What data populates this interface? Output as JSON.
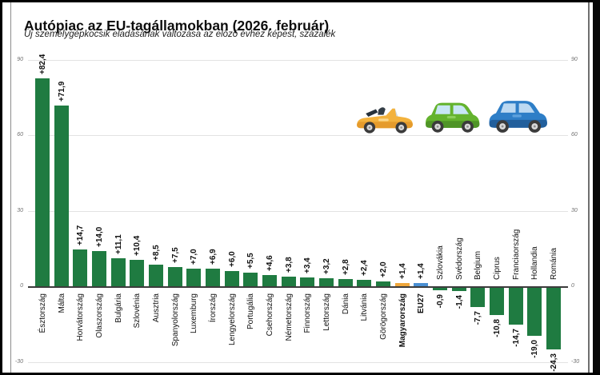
{
  "header": {
    "title": "Autópiac az EU-tagállamokban (2026. február)",
    "subtitle": "Új személygépkocsik eladásának változása az előző évhez képest, százalék"
  },
  "chart_data": {
    "type": "bar",
    "title": "Autópiac az EU-tagállamokban (2026. február)",
    "subtitle": "Új személygépkocsik eladásának változása az előző évhez képest, százalék",
    "xlabel": "",
    "ylabel": "",
    "ylim": [
      -30,
      90
    ],
    "grid": true,
    "grid_values": [
      90,
      60,
      30,
      -30
    ],
    "y_ticks": [
      90,
      60,
      30,
      0,
      -30
    ],
    "y_tick_labels": [
      "90",
      "60",
      "30",
      "0",
      "-30"
    ],
    "legend_position": "none",
    "categories": [
      "Észtország",
      "Málta",
      "Horvátország",
      "Olaszország",
      "Bulgária",
      "Szlovénia",
      "Ausztria",
      "Spanyolország",
      "Luxemburg",
      "Írország",
      "Lengyelország",
      "Portugália",
      "Csehország",
      "Németország",
      "Finnország",
      "Lettország",
      "Dánia",
      "Litvánia",
      "Görögország",
      "Magyarország",
      "EU27",
      "Szlovákia",
      "Svédország",
      "Belgium",
      "Ciprus",
      "Franciaország",
      "Hollandia",
      "Románia"
    ],
    "values": [
      82.4,
      71.9,
      14.7,
      14.0,
      11.1,
      10.4,
      8.5,
      7.5,
      7.0,
      6.9,
      6.0,
      5.5,
      4.6,
      3.8,
      3.4,
      3.2,
      2.8,
      2.4,
      2.0,
      1.4,
      1.4,
      -0.9,
      -1.4,
      -7.7,
      -10.8,
      -14.7,
      -19.0,
      -24.3
    ],
    "value_labels": [
      "+82,4",
      "+71,9",
      "+14,7",
      "+14,0",
      "+11,1",
      "+10,4",
      "+8,5",
      "+7,5",
      "+7,0",
      "+6,9",
      "+6,0",
      "+5,5",
      "+4,6",
      "+3,8",
      "+3,4",
      "+3,2",
      "+2,8",
      "+2,4",
      "+2,0",
      "+1,4",
      "+1,4",
      "-0,9",
      "-1,4",
      "-7,7",
      "-10,8",
      "-14,7",
      "-19,0",
      "-24,3"
    ],
    "bar_color_default": "#1f7b41",
    "highlight_colors": {
      "Magyarország": "#efa73b",
      "EU27": "#4a8fd2"
    },
    "bold_categories": [
      "Magyarország",
      "EU27"
    ]
  },
  "colors": {
    "axis": "#3c3c3c",
    "grid": "#e3e3e3",
    "label_text": "#101010",
    "tick_text": "#707070",
    "green_bar": "#1f7b41",
    "hungary_bar": "#efa73b",
    "eu27_bar": "#4a8fd2"
  },
  "icons": {
    "cars": [
      {
        "name": "yellow-convertible-icon",
        "color": "#f3b23d"
      },
      {
        "name": "green-car-icon",
        "color": "#64b32e"
      },
      {
        "name": "blue-car-icon",
        "color": "#2e7ec7"
      }
    ]
  }
}
